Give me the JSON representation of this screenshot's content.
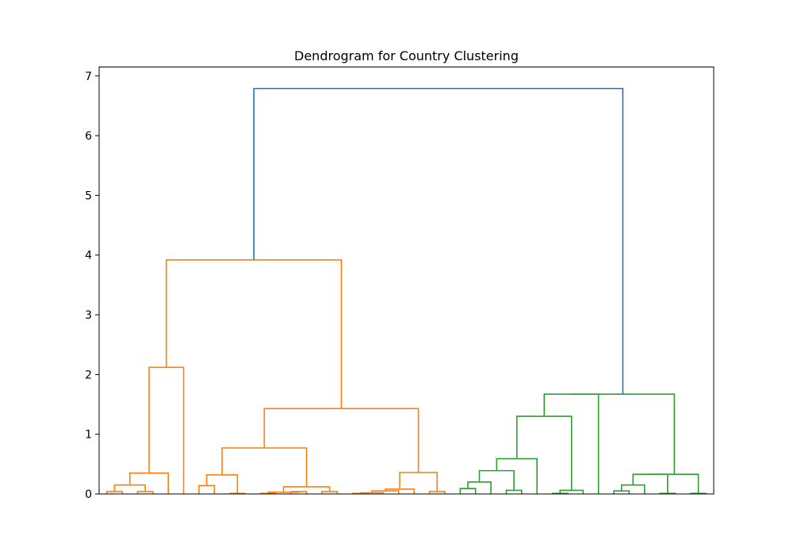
{
  "chart_data": {
    "type": "dendrogram",
    "title": "Dendrogram for Country Clustering",
    "xlabel": "",
    "ylabel": "",
    "ylim": [
      0,
      7.15
    ],
    "yticks": [
      0,
      1,
      2,
      3,
      4,
      5,
      6,
      7
    ],
    "leaf_count": 40,
    "grid": false,
    "clusters": [
      {
        "name": "orange",
        "color": "#ff7f0e"
      },
      {
        "name": "green",
        "color": "#2ca02c"
      },
      {
        "name": "root",
        "color": "#1f77b4"
      }
    ],
    "links": [
      {
        "id": "o1",
        "left": 0,
        "right": 1,
        "height": 0.04,
        "cluster": "orange"
      },
      {
        "id": "o2",
        "left": 2,
        "right": 3,
        "height": 0.04,
        "cluster": "orange"
      },
      {
        "id": "o3",
        "left": "o1",
        "right": "o2",
        "height": 0.15,
        "cluster": "orange"
      },
      {
        "id": "o4",
        "left": "o3",
        "right": 4,
        "height": 0.35,
        "cluster": "orange"
      },
      {
        "id": "o5",
        "left": "o4",
        "right": 5,
        "height": 2.12,
        "cluster": "orange"
      },
      {
        "id": "o6",
        "left": 6,
        "right": 7,
        "height": 0.14,
        "cluster": "orange"
      },
      {
        "id": "o7",
        "left": 8,
        "right": 9,
        "height": 0.01,
        "cluster": "orange"
      },
      {
        "id": "o8",
        "left": "o6",
        "right": "o7",
        "height": 0.32,
        "cluster": "orange"
      },
      {
        "id": "o9",
        "left": 10,
        "right": 11,
        "height": 0.01,
        "cluster": "orange"
      },
      {
        "id": "o10",
        "left": 12,
        "right": 13,
        "height": 0.04,
        "cluster": "orange"
      },
      {
        "id": "o11",
        "left": "o9",
        "right": "o10",
        "height": 0.03,
        "cluster": "orange"
      },
      {
        "id": "o12",
        "left": 14,
        "right": 15,
        "height": 0.04,
        "cluster": "orange"
      },
      {
        "id": "o13",
        "left": "o11",
        "right": "o12",
        "height": 0.12,
        "cluster": "orange"
      },
      {
        "id": "o14",
        "left": "o8",
        "right": "o13",
        "height": 0.77,
        "cluster": "orange"
      },
      {
        "id": "o15",
        "left": 16,
        "right": 17,
        "height": 0.01,
        "cluster": "orange"
      },
      {
        "id": "o16",
        "left": "o15",
        "right": 18,
        "height": 0.02,
        "cluster": "orange"
      },
      {
        "id": "o17",
        "left": "o16",
        "right": 19,
        "height": 0.05,
        "cluster": "orange"
      },
      {
        "id": "o18",
        "left": "o17",
        "right": 20,
        "height": 0.08,
        "cluster": "orange"
      },
      {
        "id": "o19",
        "left": 21,
        "right": 22,
        "height": 0.04,
        "cluster": "orange"
      },
      {
        "id": "o20",
        "left": "o18",
        "right": "o19",
        "height": 0.36,
        "cluster": "orange"
      },
      {
        "id": "o21",
        "left": "o14",
        "right": "o20",
        "height": 1.43,
        "cluster": "orange"
      },
      {
        "id": "o22",
        "left": "o5",
        "right": "o21",
        "height": 3.92,
        "cluster": "orange"
      },
      {
        "id": "g1",
        "left": 23,
        "right": 24,
        "height": 0.09,
        "cluster": "green"
      },
      {
        "id": "g2",
        "left": "g1",
        "right": 25,
        "height": 0.2,
        "cluster": "green"
      },
      {
        "id": "g3",
        "left": 26,
        "right": 27,
        "height": 0.06,
        "cluster": "green"
      },
      {
        "id": "g4",
        "left": "g2",
        "right": "g3",
        "height": 0.39,
        "cluster": "green"
      },
      {
        "id": "g5",
        "left": "g4",
        "right": 28,
        "height": 0.59,
        "cluster": "green"
      },
      {
        "id": "g6",
        "left": 29,
        "right": 30,
        "height": 0.01,
        "cluster": "green"
      },
      {
        "id": "g7",
        "left": "g6",
        "right": 31,
        "height": 0.06,
        "cluster": "green"
      },
      {
        "id": "g8",
        "left": "g5",
        "right": "g7",
        "height": 1.3,
        "cluster": "green"
      },
      {
        "id": "g9",
        "left": "g8",
        "right": 32,
        "height": 1.67,
        "cluster": "green"
      },
      {
        "id": "g10",
        "left": 33,
        "right": 34,
        "height": 0.05,
        "cluster": "green"
      },
      {
        "id": "g11",
        "left": "g10",
        "right": 35,
        "height": 0.15,
        "cluster": "green"
      },
      {
        "id": "g12",
        "left": 36,
        "right": 37,
        "height": 0.01,
        "cluster": "green"
      },
      {
        "id": "g13",
        "left": "g11",
        "right": "g12",
        "height": 0.33,
        "cluster": "green"
      },
      {
        "id": "g14",
        "left": 38,
        "right": 39,
        "height": 0.01,
        "cluster": "green"
      },
      {
        "id": "g15",
        "left": "g13",
        "right": "g14",
        "height": 0.33,
        "cluster": "green"
      },
      {
        "id": "g16",
        "left": "g9",
        "right": "g15",
        "height": 1.67,
        "cluster": "green"
      },
      {
        "id": "root",
        "left": "o22",
        "right": "g16",
        "height": 6.79,
        "cluster": "root"
      }
    ]
  }
}
